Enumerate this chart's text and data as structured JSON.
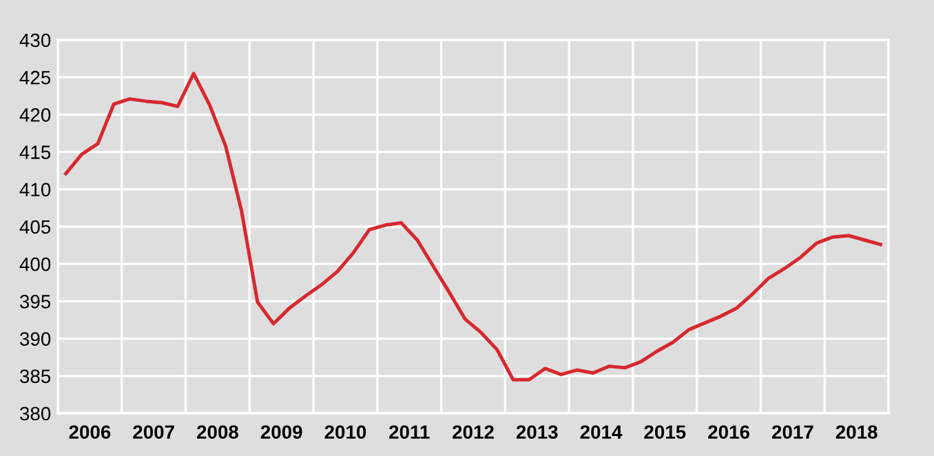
{
  "chart_data": {
    "type": "line",
    "x": [
      2006.125,
      2006.375,
      2006.625,
      2006.875,
      2007.125,
      2007.375,
      2007.625,
      2007.875,
      2008.125,
      2008.375,
      2008.625,
      2008.875,
      2009.125,
      2009.375,
      2009.625,
      2009.875,
      2010.125,
      2010.375,
      2010.625,
      2010.875,
      2011.125,
      2011.375,
      2011.625,
      2011.875,
      2012.125,
      2012.375,
      2012.625,
      2012.875,
      2013.125,
      2013.375,
      2013.625,
      2013.875,
      2014.125,
      2014.375,
      2014.625,
      2014.875,
      2015.125,
      2015.375,
      2015.625,
      2015.875,
      2016.125,
      2016.375,
      2016.625,
      2016.875,
      2017.125,
      2017.375,
      2017.625,
      2017.875,
      2018.125,
      2018.375,
      2018.625,
      2018.875
    ],
    "series": [
      {
        "color": "#d7282f",
        "values": [
          412.1,
          414.7,
          416.1,
          421.4,
          422.1,
          421.8,
          421.6,
          421.1,
          425.5,
          421.3,
          415.8,
          407.1,
          394.9,
          392.0,
          394.1,
          395.7,
          397.2,
          399.0,
          401.5,
          404.6,
          405.2,
          405.5,
          403.2,
          399.7,
          396.2,
          392.6,
          390.8,
          388.5,
          384.5,
          384.5,
          386.0,
          385.2,
          385.8,
          385.4,
          386.3,
          386.1,
          386.9,
          388.3,
          389.5,
          391.2,
          392.1,
          393.0,
          394.1,
          396.0,
          398.1,
          399.4,
          400.9,
          402.8,
          403.6,
          403.8,
          403.2,
          402.6
        ]
      }
    ],
    "xlim": [
      2006,
      2019
    ],
    "xticks": [
      {
        "value": 2006,
        "label": null
      },
      {
        "value": 2006.5,
        "label": "2006"
      },
      {
        "value": 2007,
        "label": null
      },
      {
        "value": 2007.5,
        "label": "2007"
      },
      {
        "value": 2008,
        "label": null
      },
      {
        "value": 2008.5,
        "label": "2008"
      },
      {
        "value": 2009,
        "label": null
      },
      {
        "value": 2009.5,
        "label": "2009"
      },
      {
        "value": 2010,
        "label": null
      },
      {
        "value": 2010.5,
        "label": "2010"
      },
      {
        "value": 2011,
        "label": null
      },
      {
        "value": 2011.5,
        "label": "2011"
      },
      {
        "value": 2012,
        "label": null
      },
      {
        "value": 2012.5,
        "label": "2012"
      },
      {
        "value": 2013,
        "label": null
      },
      {
        "value": 2013.5,
        "label": "2013"
      },
      {
        "value": 2014,
        "label": null
      },
      {
        "value": 2014.5,
        "label": "2014"
      },
      {
        "value": 2015,
        "label": null
      },
      {
        "value": 2015.5,
        "label": "2015"
      },
      {
        "value": 2016,
        "label": null
      },
      {
        "value": 2016.5,
        "label": "2016"
      },
      {
        "value": 2017,
        "label": null
      },
      {
        "value": 2017.5,
        "label": "2017"
      },
      {
        "value": 2018,
        "label": null
      },
      {
        "value": 2018.5,
        "label": "2018"
      },
      {
        "value": 2019,
        "label": null
      }
    ],
    "ylim": [
      380,
      430
    ],
    "yticks": [
      380,
      385,
      390,
      395,
      400,
      405,
      410,
      415,
      420,
      425,
      430
    ],
    "grid": true,
    "marker": "none",
    "line_style": "solid"
  }
}
